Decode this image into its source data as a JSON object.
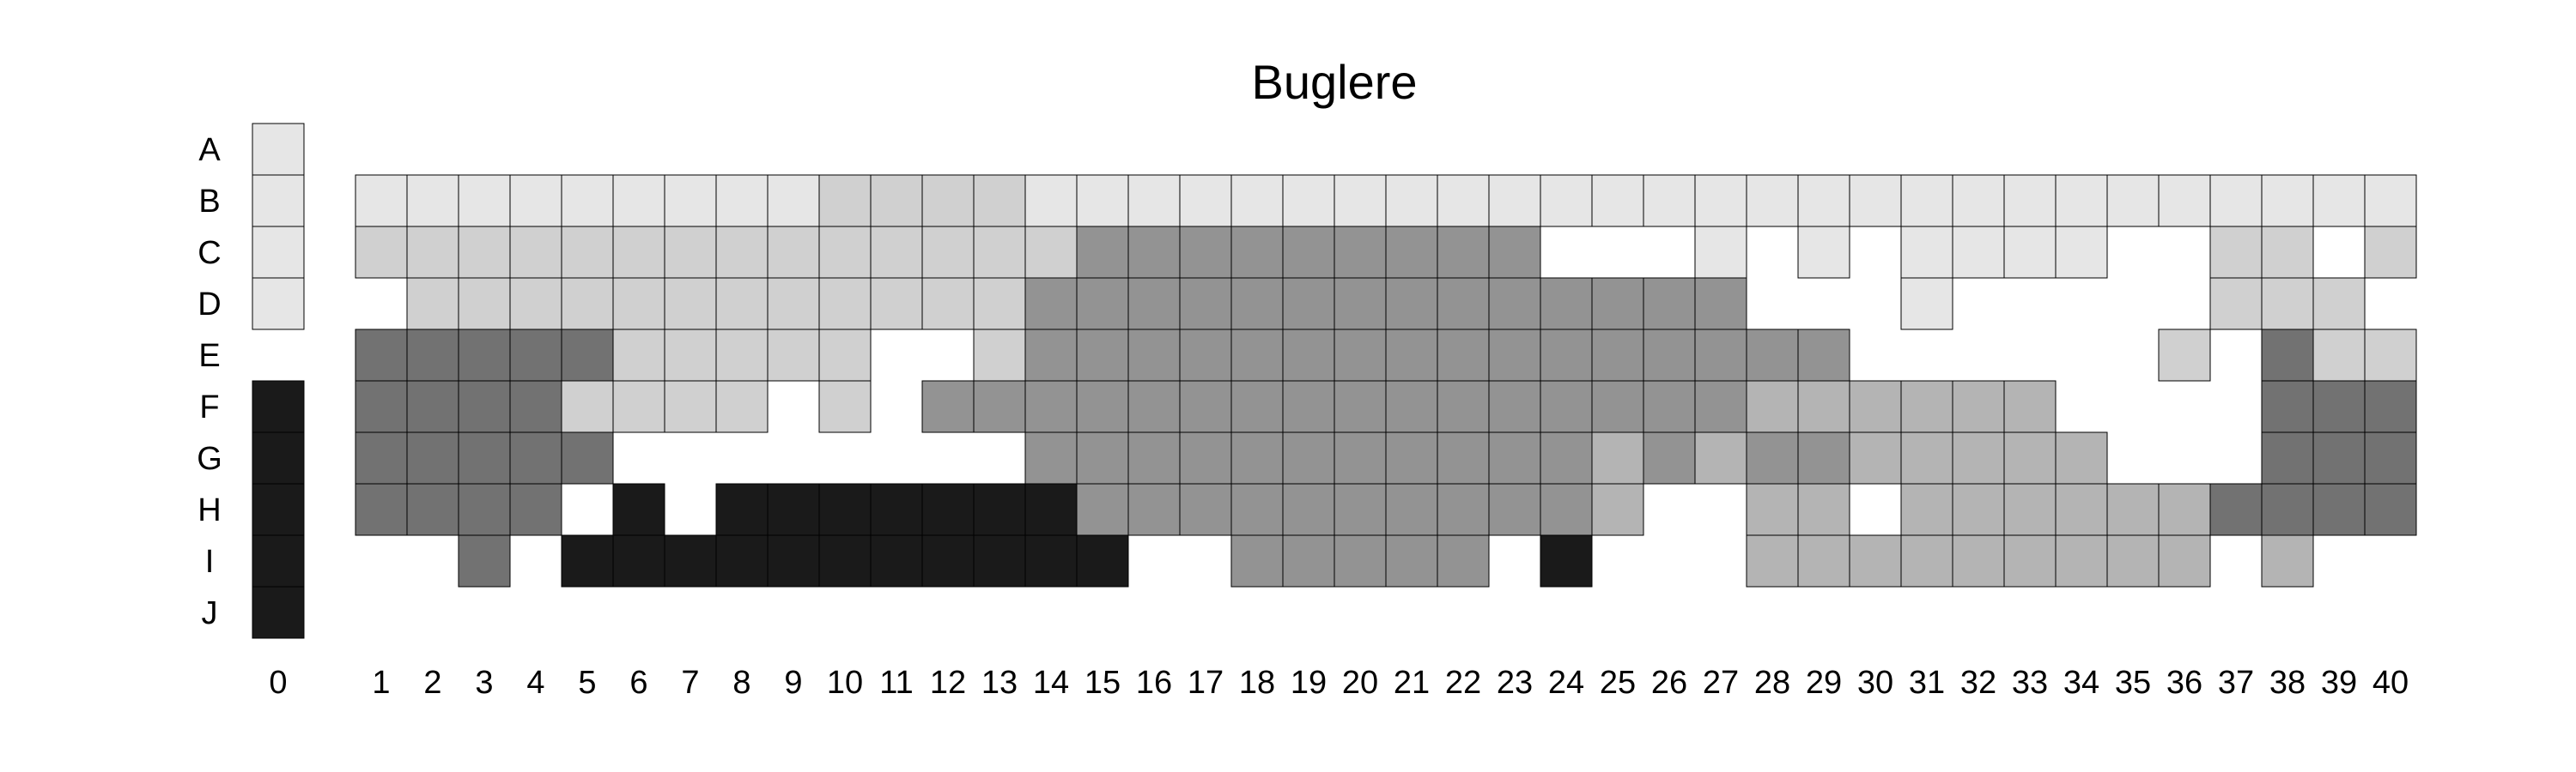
{
  "chart_data": {
    "type": "heatmap",
    "title": "Buglere",
    "row_labels": [
      "A",
      "B",
      "C",
      "D",
      "E",
      "F",
      "G",
      "H",
      "I",
      "J"
    ],
    "column_labels": [
      "0",
      "1",
      "2",
      "3",
      "4",
      "5",
      "6",
      "7",
      "8",
      "9",
      "10",
      "11",
      "12",
      "13",
      "14",
      "15",
      "16",
      "17",
      "18",
      "19",
      "20",
      "21",
      "22",
      "23",
      "24",
      "25",
      "26",
      "27",
      "28",
      "29",
      "30",
      "31",
      "32",
      "33",
      "34",
      "35",
      "36",
      "37",
      "38",
      "39",
      "40"
    ],
    "legend": "none",
    "grid": false,
    "palette": {
      "1": "#e6e6e6",
      "2": "#d0d0d0",
      "3": "#b4b4b4",
      "4": "#939393",
      "5": "#727272",
      "6": "#1a1a1a"
    },
    "rows": [
      {
        "label": "A",
        "cells": [
          1,
          0,
          0,
          0,
          0,
          0,
          0,
          0,
          0,
          0,
          0,
          0,
          0,
          0,
          0,
          0,
          0,
          0,
          0,
          0,
          0,
          0,
          0,
          0,
          0,
          0,
          0,
          0,
          0,
          0,
          0,
          0,
          0,
          0,
          0,
          0,
          0,
          0,
          0,
          0,
          0
        ]
      },
      {
        "label": "B",
        "cells": [
          1,
          1,
          1,
          1,
          1,
          1,
          1,
          1,
          1,
          1,
          2,
          2,
          2,
          2,
          1,
          1,
          1,
          1,
          1,
          1,
          1,
          1,
          1,
          1,
          1,
          1,
          1,
          1,
          1,
          1,
          1,
          1,
          1,
          1,
          1,
          1,
          1,
          1,
          1,
          1,
          1
        ]
      },
      {
        "label": "C",
        "cells": [
          1,
          2,
          2,
          2,
          2,
          2,
          2,
          2,
          2,
          2,
          2,
          2,
          2,
          2,
          2,
          4,
          4,
          4,
          4,
          4,
          4,
          4,
          4,
          4,
          0,
          0,
          0,
          1,
          0,
          1,
          0,
          1,
          1,
          1,
          1,
          0,
          0,
          2,
          2,
          0,
          2
        ]
      },
      {
        "label": "D",
        "cells": [
          1,
          0,
          2,
          2,
          2,
          2,
          2,
          2,
          2,
          2,
          2,
          2,
          2,
          2,
          4,
          4,
          4,
          4,
          4,
          4,
          4,
          4,
          4,
          4,
          4,
          4,
          4,
          4,
          0,
          0,
          0,
          1,
          0,
          0,
          0,
          0,
          0,
          2,
          2,
          2,
          0
        ]
      },
      {
        "label": "E",
        "cells": [
          0,
          5,
          5,
          5,
          5,
          5,
          2,
          2,
          2,
          2,
          2,
          0,
          0,
          2,
          4,
          4,
          4,
          4,
          4,
          4,
          4,
          4,
          4,
          4,
          4,
          4,
          4,
          4,
          4,
          4,
          0,
          0,
          0,
          0,
          0,
          0,
          2,
          0,
          5,
          2,
          2
        ]
      },
      {
        "label": "F",
        "cells": [
          6,
          5,
          5,
          5,
          5,
          2,
          2,
          2,
          2,
          0,
          2,
          0,
          4,
          4,
          4,
          4,
          4,
          4,
          4,
          4,
          4,
          4,
          4,
          4,
          4,
          4,
          4,
          4,
          3,
          3,
          3,
          3,
          3,
          3,
          0,
          0,
          0,
          0,
          5,
          5,
          5
        ]
      },
      {
        "label": "G",
        "cells": [
          6,
          5,
          5,
          5,
          5,
          5,
          0,
          0,
          0,
          0,
          0,
          0,
          0,
          0,
          4,
          4,
          4,
          4,
          4,
          4,
          4,
          4,
          4,
          4,
          4,
          3,
          4,
          3,
          4,
          4,
          3,
          3,
          3,
          3,
          3,
          0,
          0,
          0,
          5,
          5,
          5
        ]
      },
      {
        "label": "H",
        "cells": [
          6,
          5,
          5,
          5,
          5,
          0,
          6,
          0,
          6,
          6,
          6,
          6,
          6,
          6,
          6,
          4,
          4,
          4,
          4,
          4,
          4,
          4,
          4,
          4,
          4,
          3,
          0,
          0,
          3,
          3,
          0,
          3,
          3,
          3,
          3,
          3,
          3,
          5,
          5,
          5,
          5
        ]
      },
      {
        "label": "I",
        "cells": [
          6,
          0,
          0,
          5,
          0,
          6,
          6,
          6,
          6,
          6,
          6,
          6,
          6,
          6,
          6,
          6,
          0,
          0,
          4,
          4,
          4,
          4,
          4,
          0,
          6,
          0,
          0,
          0,
          3,
          3,
          3,
          3,
          3,
          3,
          3,
          3,
          3,
          0,
          3,
          0,
          0
        ]
      },
      {
        "label": "J",
        "cells": [
          6,
          0,
          0,
          0,
          0,
          0,
          0,
          0,
          0,
          0,
          0,
          0,
          0,
          0,
          0,
          0,
          0,
          0,
          0,
          0,
          0,
          0,
          0,
          0,
          0,
          0,
          0,
          0,
          0,
          0,
          0,
          0,
          0,
          0,
          0,
          0,
          0,
          0,
          0,
          0,
          0
        ]
      }
    ]
  }
}
